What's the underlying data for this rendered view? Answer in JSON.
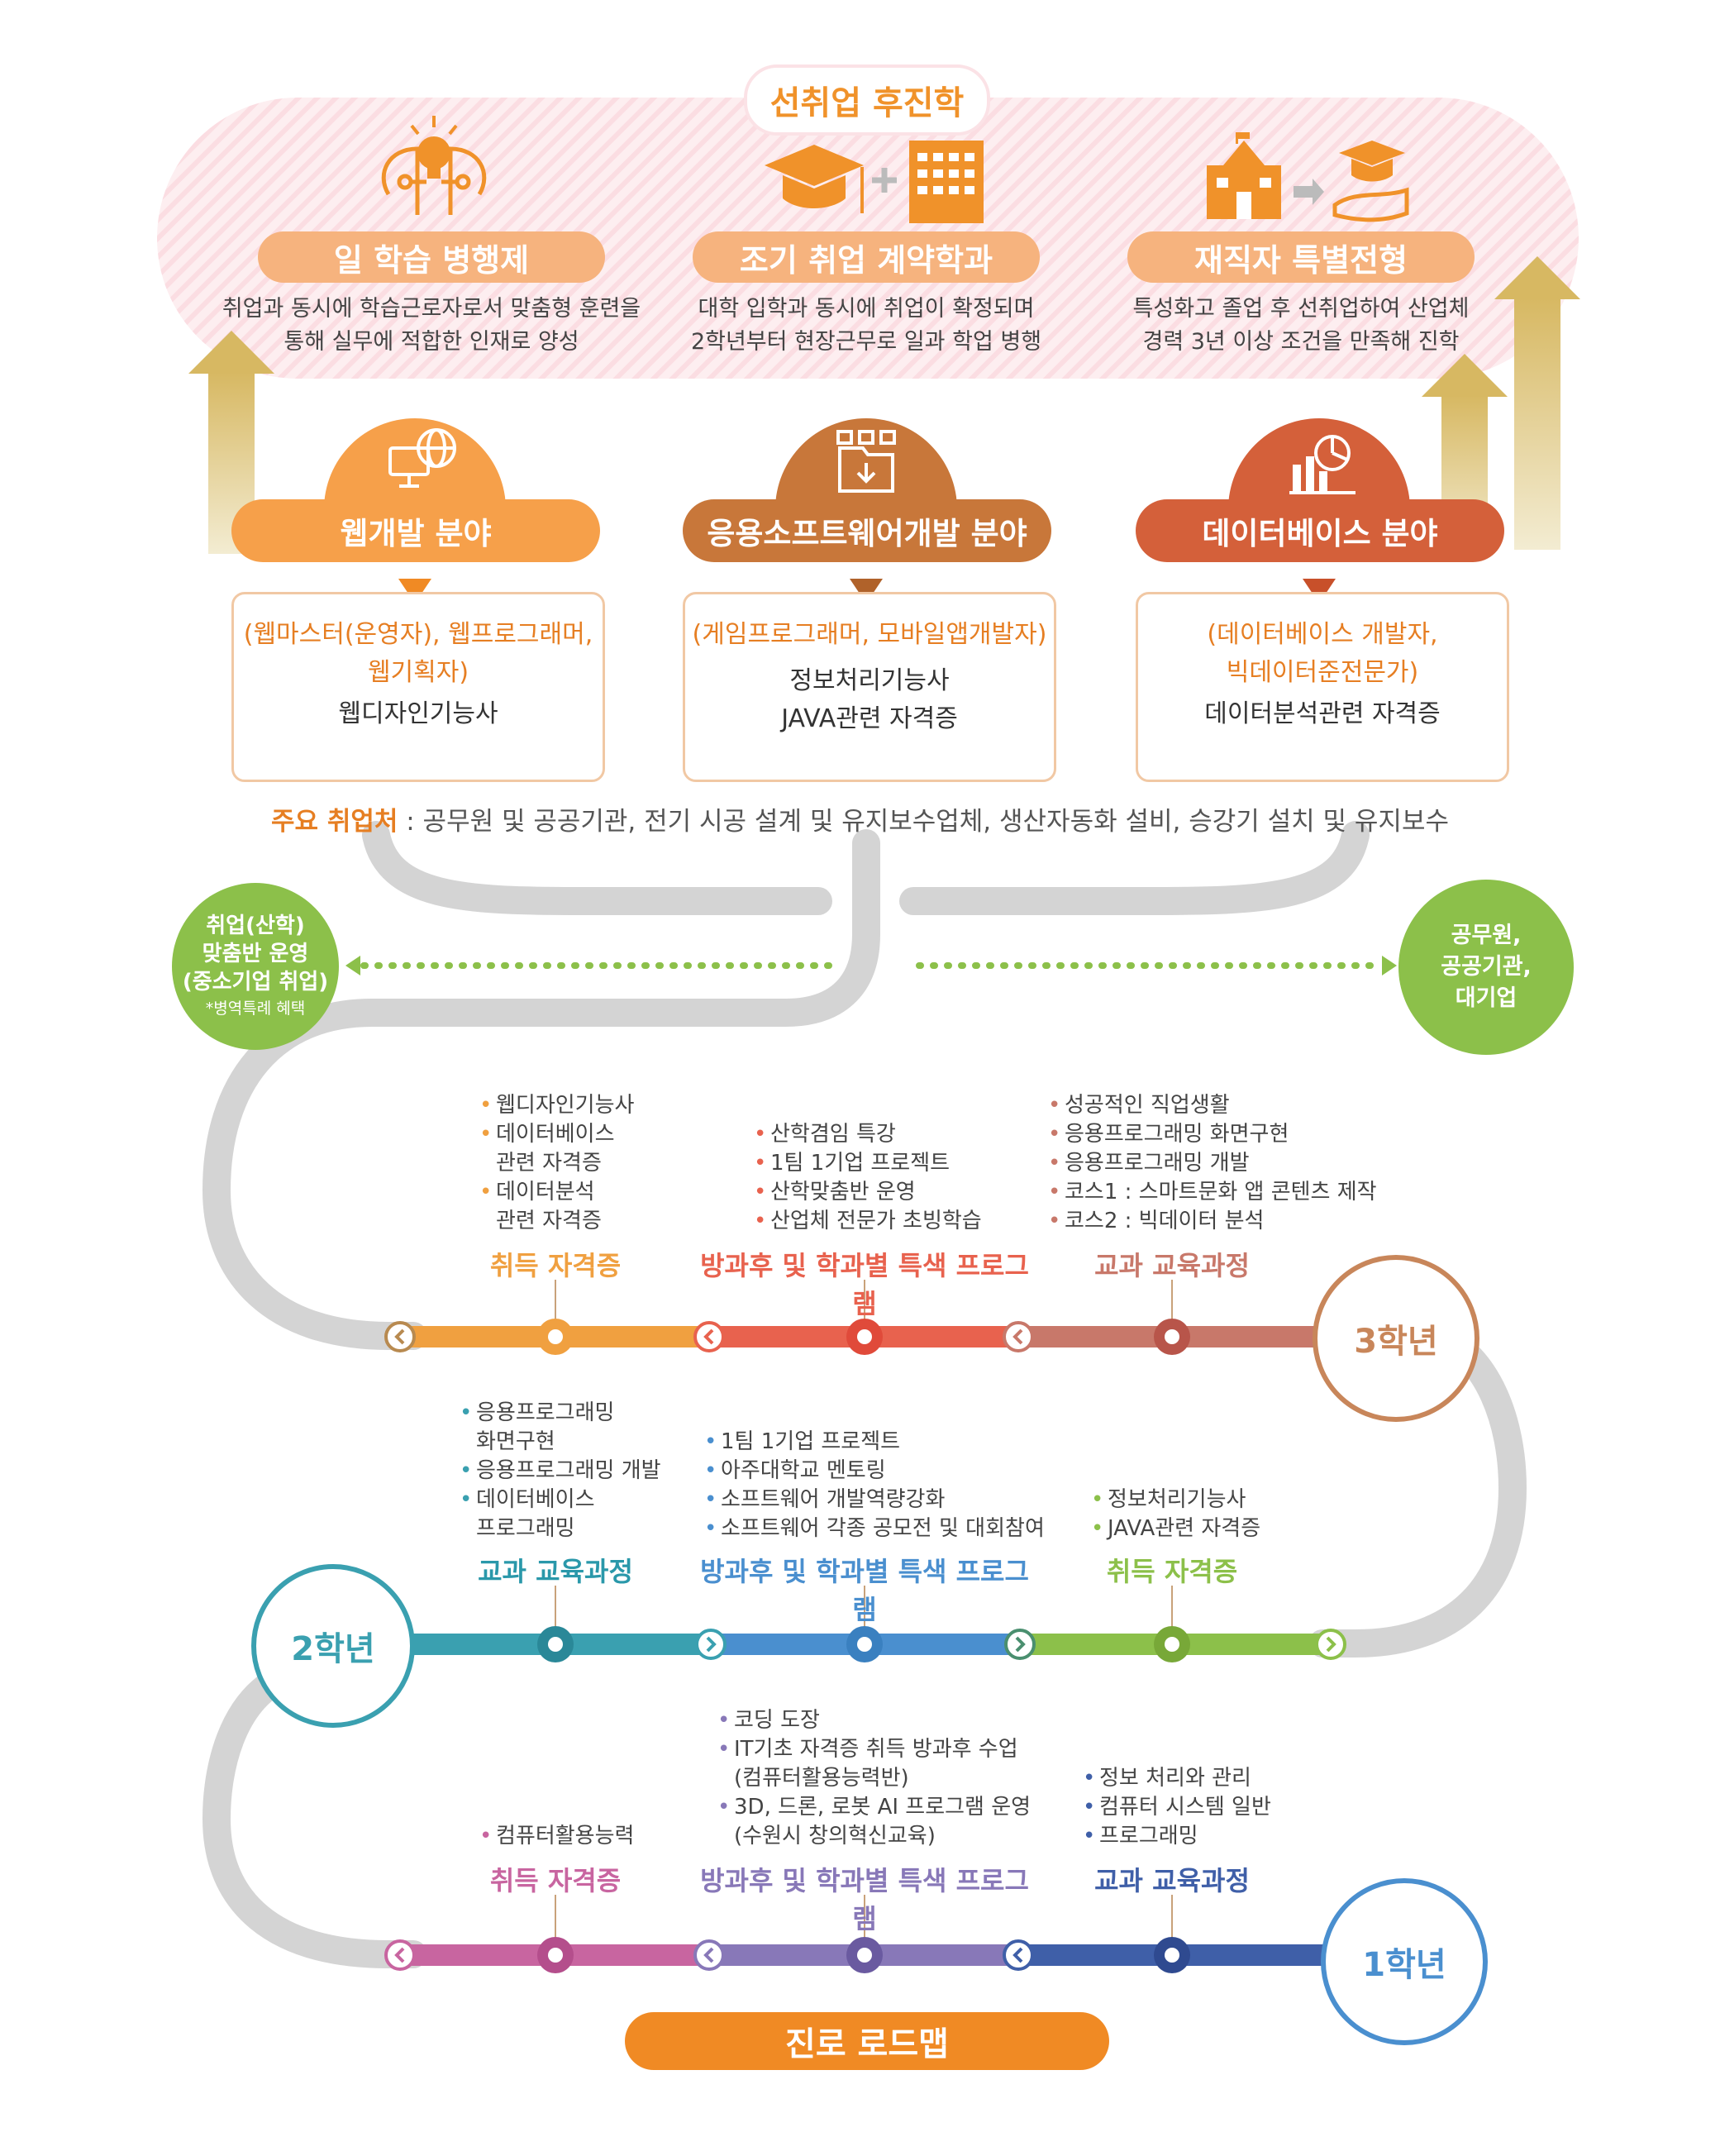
{
  "top": {
    "title": "선취업 후진학",
    "cards": [
      {
        "label": "일 학습 병행제",
        "desc1": "취업과 동시에 학습근로자로서 맞춤형 훈련을",
        "desc2": "통해 실무에 적합한 인재로 양성"
      },
      {
        "label": "조기 취업 계약학과",
        "desc1": "대학 입학과 동시에 취업이 확정되며",
        "desc2": "2학년부터 현장근무로 일과 학업 병행"
      },
      {
        "label": "재직자 특별전형",
        "desc1": "특성화고 졸업 후 선취업하여 산업체",
        "desc2": "경력 3년 이상 조건을 만족해 진학"
      }
    ]
  },
  "fields": [
    {
      "name": "웹개발 분야",
      "jobs1": "(웹마스터(운영자), 웹프로그래머,",
      "jobs2": "웹기획자)",
      "cert1": "웹디자인기능사",
      "cert2": "",
      "color": "#f6a04a"
    },
    {
      "name": "응용소프트웨어개발 분야",
      "jobs1": "(게임프로그래머, 모바일앱개발자)",
      "jobs2": "",
      "cert1": "정보처리기능사",
      "cert2": "JAVA관련 자격증",
      "color": "#c8773a"
    },
    {
      "name": "데이터베이스 분야",
      "jobs1": "(데이터베이스 개발자,",
      "jobs2": "빅데이터준전문가)",
      "cert1": "데이터분석관련 자격증",
      "cert2": "",
      "color": "#d4603a"
    }
  ],
  "employment": {
    "label": "주요 취업처",
    "text": " : 공무원 및 공공기관, 전기 시공 설계 및 유지보수업체, 생산자동화 설비, 승강기 설치 및 유지보수"
  },
  "left_circle": {
    "l1": "취업(산학)",
    "l2": "맞춤반 운영",
    "l3": "(중소기업 취업)",
    "note": "*병역특례 혜택"
  },
  "right_circle": {
    "l1": "공무원,",
    "l2": "공공기관,",
    "l3": "대기업"
  },
  "years": {
    "y3": {
      "label": "3학년",
      "cols": [
        {
          "title": "취득 자격증",
          "items": [
            [
              "웹디자인기능사"
            ],
            [
              "데이터베이스",
              "관련 자격증"
            ],
            [
              "데이터분석",
              "관련 자격증"
            ]
          ]
        },
        {
          "title": "방과후 및 학과별 특색 프로그램",
          "items": [
            [
              "산학겸임 특강"
            ],
            [
              "1팀 1기업 프로젝트"
            ],
            [
              "산학맞춤반 운영"
            ],
            [
              "산업체 전문가 초빙학습"
            ]
          ]
        },
        {
          "title": "교과 교육과정",
          "items": [
            [
              "성공적인 직업생활"
            ],
            [
              "응용프로그래밍 화면구현"
            ],
            [
              "응용프로그래밍 개발"
            ],
            [
              "코스1 : 스마트문화 앱 콘텐츠 제작"
            ],
            [
              "코스2 : 빅데이터 분석"
            ]
          ]
        }
      ]
    },
    "y2": {
      "label": "2학년",
      "cols": [
        {
          "title": "교과 교육과정",
          "items": [
            [
              "응용프로그래밍",
              "화면구현"
            ],
            [
              "응용프로그래밍 개발"
            ],
            [
              "데이터베이스",
              "프로그래밍"
            ]
          ]
        },
        {
          "title": "방과후 및 학과별 특색 프로그램",
          "items": [
            [
              "1팀 1기업 프로젝트"
            ],
            [
              "아주대학교 멘토링"
            ],
            [
              "소프트웨어 개발역량강화"
            ],
            [
              "소프트웨어 각종 공모전 및 대회참여"
            ]
          ]
        },
        {
          "title": "취득 자격증",
          "items": [
            [
              "정보처리기능사"
            ],
            [
              "JAVA관련 자격증"
            ]
          ]
        }
      ]
    },
    "y1": {
      "label": "1학년",
      "cols": [
        {
          "title": "취득 자격증",
          "items": [
            [
              "컴퓨터활용능력"
            ]
          ]
        },
        {
          "title": "방과후 및 학과별 특색 프로그램",
          "items": [
            [
              "코딩 도장"
            ],
            [
              "IT기초 자격증 취득 방과후 수업",
              "(컴퓨터활용능력반)"
            ],
            [
              "3D, 드론, 로봇 AI 프로그램 운영",
              "(수원시 창의혁신교육)"
            ]
          ]
        },
        {
          "title": "교과 교육과정",
          "items": [
            [
              "정보 처리와 관리"
            ],
            [
              "컴퓨터 시스템 일반"
            ],
            [
              "프로그래밍"
            ]
          ]
        }
      ]
    }
  },
  "bottom_label": "진로 로드맵",
  "colors": {
    "orange": "#f08a24",
    "green": "#8cc04a",
    "teal": "#3aa0b0",
    "blue": "#4a8fcf",
    "navy": "#3f5fa8",
    "pink": "#c865a0",
    "purple": "#8878b8",
    "red": "#e8624e",
    "brown": "#c8786a"
  }
}
